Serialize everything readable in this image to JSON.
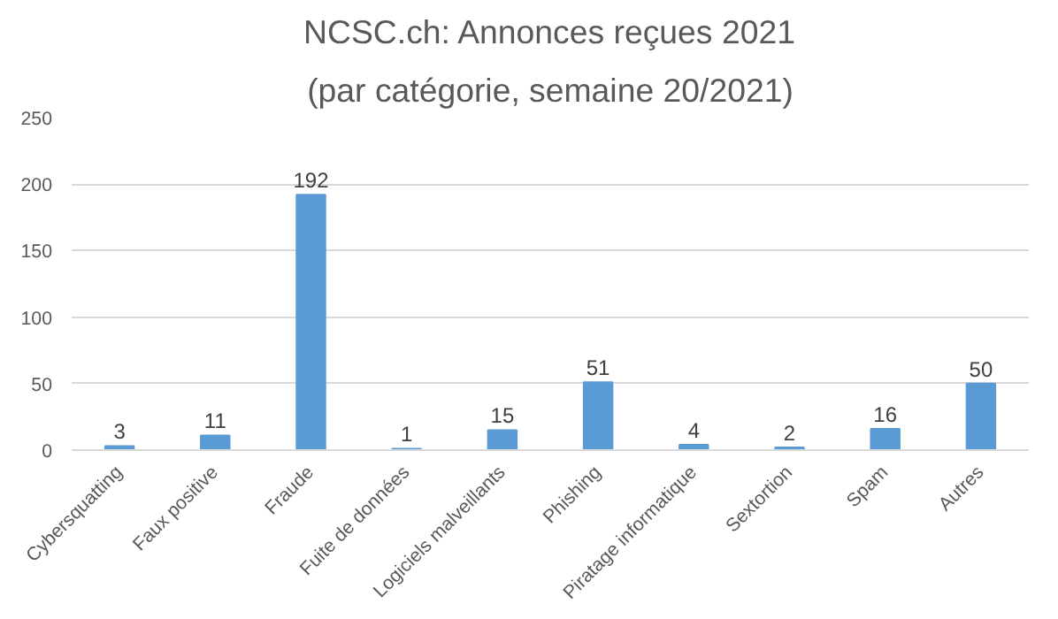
{
  "chart_data": {
    "type": "bar",
    "title": "NCSC.ch: Annonces reçues 2021",
    "subtitle": "(par catégorie, semaine 20/2021)",
    "categories": [
      "Cybersquatting",
      "Faux positive",
      "Fraude",
      "Fuite de données",
      "Logiciels malveillants",
      "Phishing",
      "Piratage informatique",
      "Sextortion",
      "Spam",
      "Autres"
    ],
    "values": [
      3,
      11,
      192,
      1,
      15,
      51,
      4,
      2,
      16,
      50
    ],
    "color": "#5b9bd5",
    "ylim": [
      0,
      250
    ],
    "yticks": [
      0,
      50,
      100,
      150,
      200,
      250
    ],
    "grid": "y",
    "data_labels": true
  }
}
